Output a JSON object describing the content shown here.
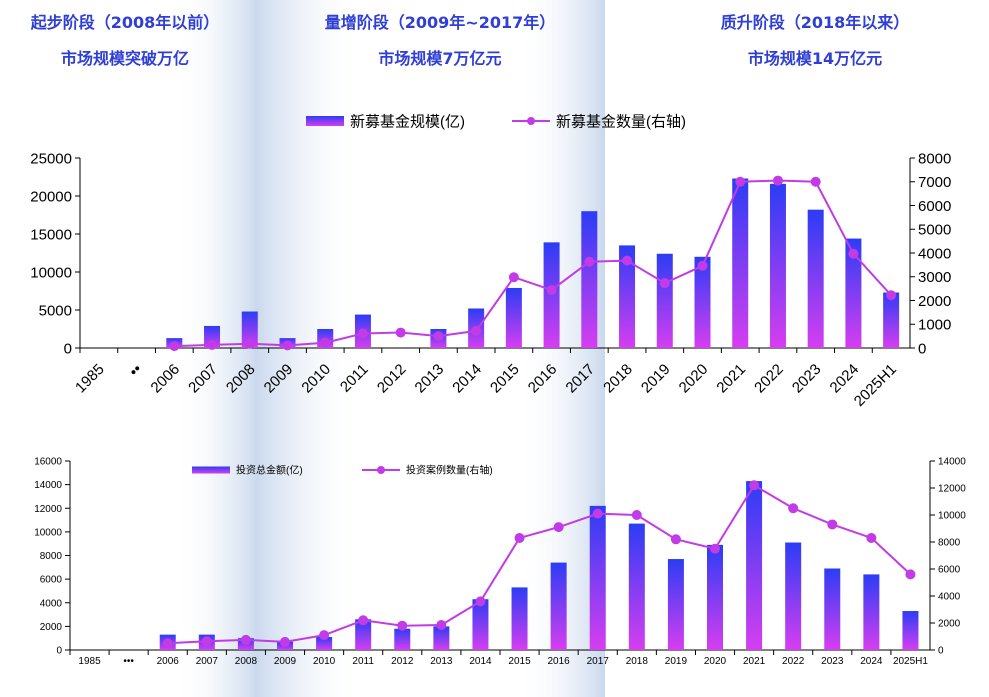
{
  "phases": [
    {
      "title": "起步阶段（2008年以前）",
      "subtitle": "市场规模突破万亿"
    },
    {
      "title": "量增阶段（2009年~2017年）",
      "subtitle": "市场规模7万亿元"
    },
    {
      "title": "质升阶段（2018年以来）",
      "subtitle": "市场规模14万亿元"
    }
  ],
  "colors": {
    "bar_top": "#2b3df5",
    "bar_bottom": "#d63ef0",
    "line": "#c13be6",
    "phase_text": "#2f3fd6",
    "band": "#c7d6ec"
  },
  "chart_data": [
    {
      "type": "bar",
      "categories": [
        "1985",
        "••",
        "2006",
        "2007",
        "2008",
        "2009",
        "2010",
        "2011",
        "2012",
        "2013",
        "2014",
        "2015",
        "2016",
        "2017",
        "2018",
        "2019",
        "2020",
        "2021",
        "2022",
        "2023",
        "2024",
        "2025H1"
      ],
      "series": [
        {
          "name": "新募基金规模(亿)",
          "type": "bar",
          "axis": "left",
          "values": [
            null,
            null,
            1300,
            2900,
            4800,
            1300,
            2500,
            4400,
            0,
            2500,
            5200,
            7900,
            13900,
            18000,
            13500,
            12400,
            12000,
            22300,
            21600,
            18200,
            14400,
            7300
          ]
        },
        {
          "name": "新募基金数量(右轴)",
          "type": "line",
          "axis": "right",
          "values": [
            null,
            null,
            80,
            130,
            180,
            110,
            220,
            610,
            650,
            500,
            720,
            2980,
            2440,
            3630,
            3680,
            2730,
            3460,
            7000,
            7050,
            7000,
            3970,
            2220
          ]
        }
      ],
      "ylim": [
        0,
        25000
      ],
      "yticks": [
        "0",
        "5000",
        "10000",
        "15000",
        "20000",
        "25000"
      ],
      "y2lim": [
        0,
        8000
      ],
      "y2ticks": [
        "0",
        "1000",
        "2000",
        "3000",
        "4000",
        "5000",
        "6000",
        "7000",
        "8000"
      ],
      "xlabel": "",
      "ylabel": "",
      "grid": false,
      "legend": "top-center"
    },
    {
      "type": "bar",
      "categories": [
        "1985",
        "•••",
        "2006",
        "2007",
        "2008",
        "2009",
        "2010",
        "2011",
        "2012",
        "2013",
        "2014",
        "2015",
        "2016",
        "2017",
        "2018",
        "2019",
        "2020",
        "2021",
        "2022",
        "2023",
        "2024",
        "2025H1"
      ],
      "series": [
        {
          "name": "投资总金额(亿)",
          "type": "bar",
          "axis": "left",
          "values": [
            null,
            null,
            1300,
            1300,
            1000,
            700,
            1100,
            2600,
            1800,
            2000,
            4300,
            5300,
            7400,
            12200,
            10700,
            7700,
            8900,
            14300,
            9100,
            6900,
            6400,
            3300
          ]
        },
        {
          "name": "投资案例数量(右轴)",
          "type": "line",
          "axis": "right",
          "values": [
            null,
            null,
            500,
            650,
            750,
            600,
            1100,
            2200,
            1800,
            1850,
            3600,
            8300,
            9100,
            10100,
            10000,
            8200,
            7500,
            12200,
            10500,
            9300,
            8300,
            5600
          ]
        }
      ],
      "ylim": [
        0,
        16000
      ],
      "yticks": [
        "0",
        "2000",
        "4000",
        "6000",
        "8000",
        "10000",
        "12000",
        "14000",
        "16000"
      ],
      "y2lim": [
        0,
        14000
      ],
      "y2ticks": [
        "0",
        "2000",
        "4000",
        "6000",
        "8000",
        "10000",
        "12000",
        "14000"
      ],
      "xlabel": "",
      "ylabel": "",
      "grid": false,
      "legend": "top-center"
    }
  ]
}
